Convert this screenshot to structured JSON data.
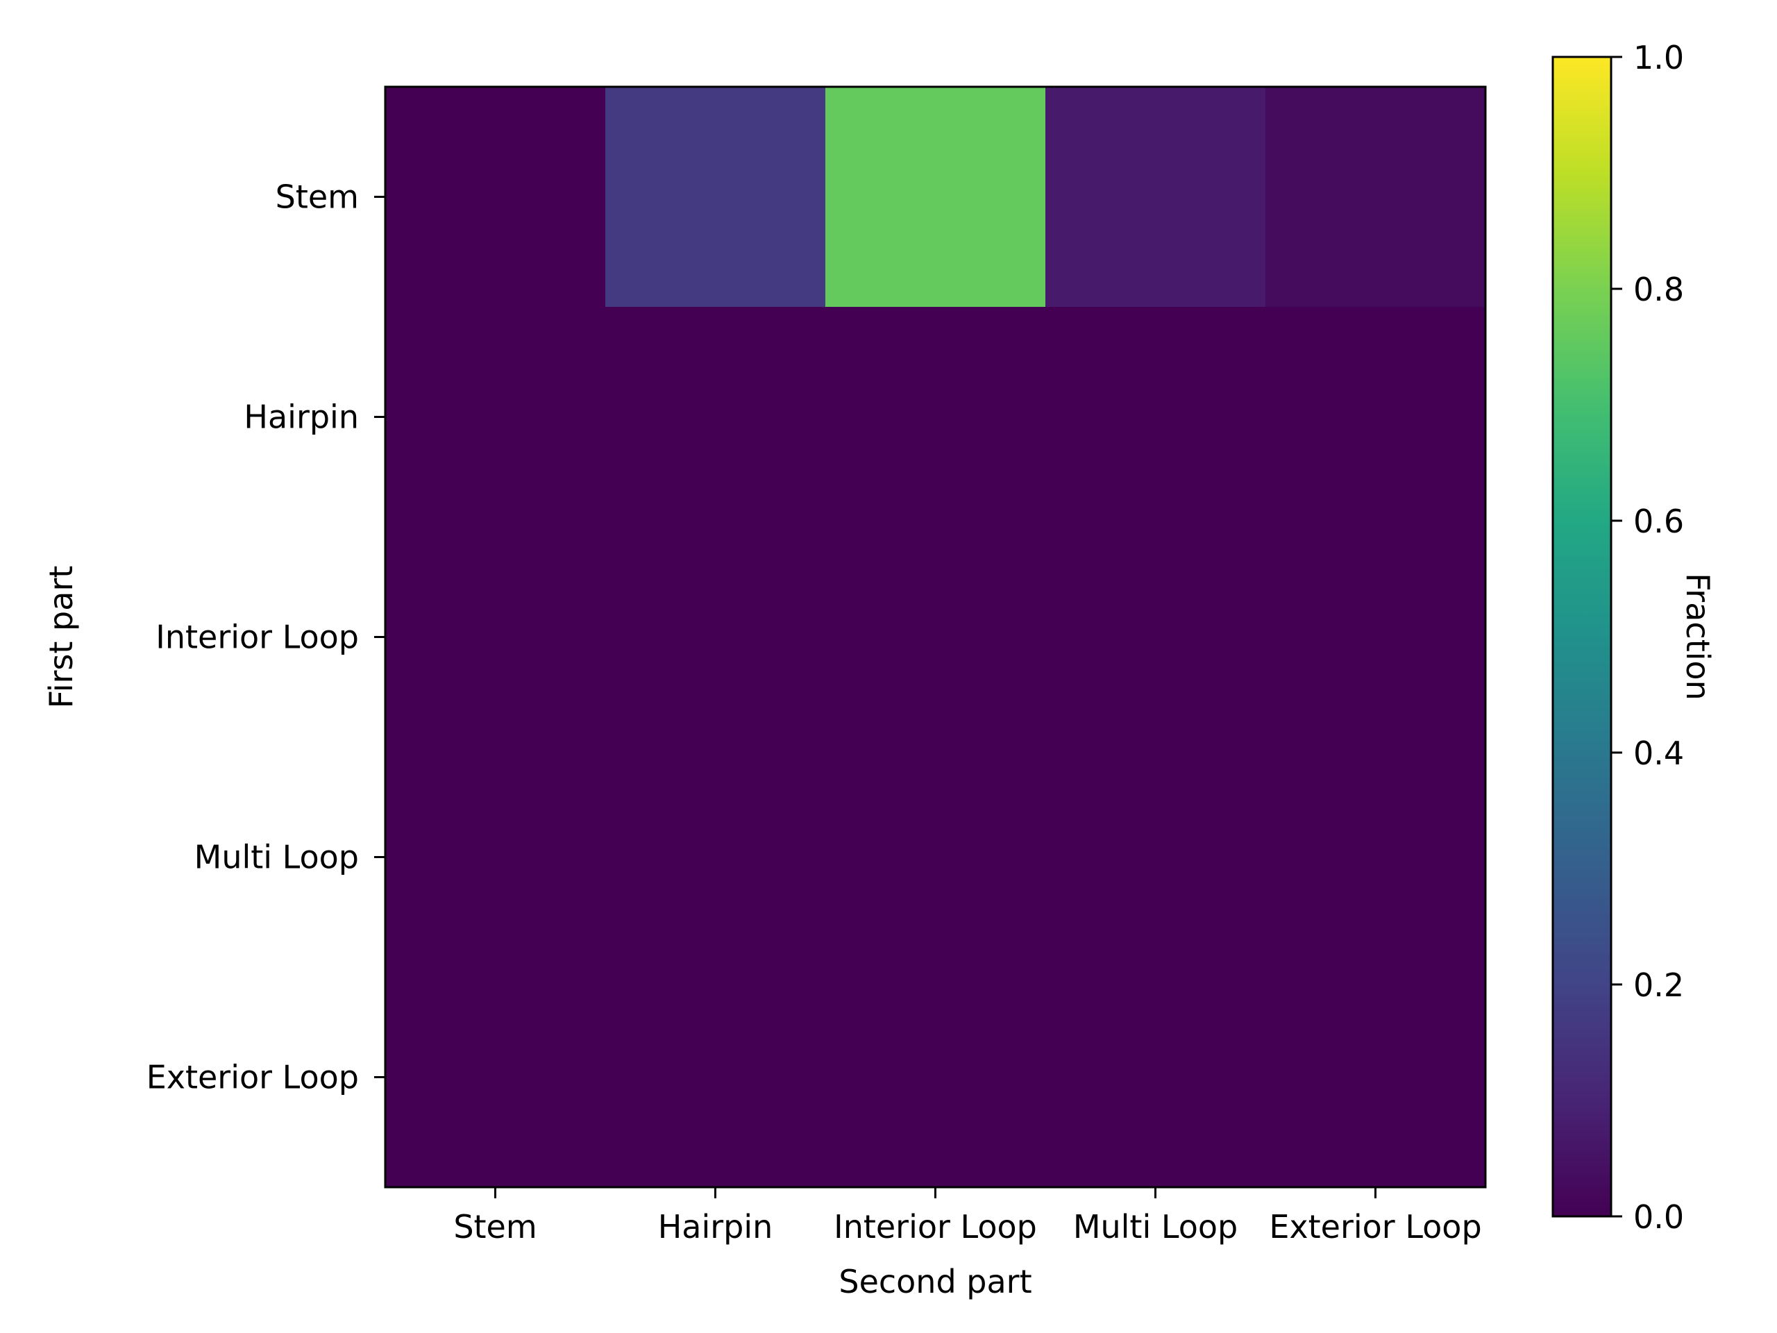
{
  "chart_data": {
    "type": "heatmap",
    "title": "",
    "xlabel": "Second part",
    "ylabel": "First part",
    "x_categories": [
      "Stem",
      "Hairpin",
      "Interior Loop",
      "Multi Loop",
      "Exterior Loop"
    ],
    "y_categories": [
      "Stem",
      "Hairpin",
      "Interior Loop",
      "Multi Loop",
      "Exterior Loop"
    ],
    "values": [
      [
        0.0,
        0.17,
        0.76,
        0.07,
        0.03
      ],
      [
        0.0,
        0.0,
        0.0,
        0.0,
        0.0
      ],
      [
        0.0,
        0.0,
        0.0,
        0.0,
        0.0
      ],
      [
        0.0,
        0.0,
        0.0,
        0.0,
        0.0
      ],
      [
        0.0,
        0.0,
        0.0,
        0.0,
        0.0
      ]
    ],
    "colormap": "viridis",
    "colorbar": {
      "label": "Fraction",
      "range": [
        0.0,
        1.0
      ],
      "ticks": [
        0.0,
        0.2,
        0.4,
        0.6,
        0.8,
        1.0
      ],
      "tick_labels": [
        "0.0",
        "0.2",
        "0.4",
        "0.6",
        "0.8",
        "1.0"
      ],
      "position": "right"
    },
    "grid": false
  }
}
